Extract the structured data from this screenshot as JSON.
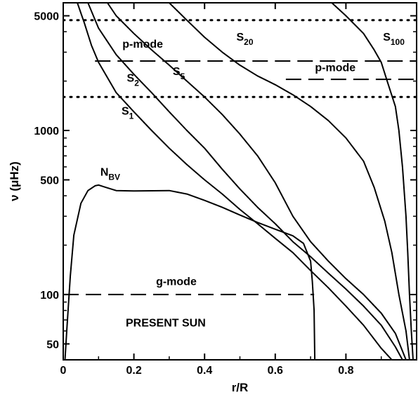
{
  "chart_data": {
    "type": "line",
    "title": "",
    "xlabel": "r/R",
    "ylabel": "ν (μHz)",
    "xlim": [
      0,
      1.0
    ],
    "ylim": [
      40,
      6000
    ],
    "y_scale": "log",
    "x_ticks": [
      0,
      0.2,
      0.4,
      0.6,
      0.8
    ],
    "x_tick_labels": [
      "0",
      "0.2",
      "0.4",
      "0.6",
      "0.8"
    ],
    "y_ticks": [
      50,
      100,
      500,
      1000,
      5000
    ],
    "y_tick_labels": [
      "50",
      "100",
      "500",
      "1000",
      "5000"
    ],
    "curves": [
      {
        "name": "S1",
        "label_main": "S",
        "label_sub": "1",
        "points": [
          [
            0.04,
            6000
          ],
          [
            0.06,
            4500
          ],
          [
            0.08,
            3300
          ],
          [
            0.1,
            2600
          ],
          [
            0.15,
            1700
          ],
          [
            0.2,
            1300
          ],
          [
            0.25,
            1000
          ],
          [
            0.3,
            780
          ],
          [
            0.35,
            620
          ],
          [
            0.4,
            500
          ],
          [
            0.45,
            410
          ],
          [
            0.5,
            330
          ],
          [
            0.55,
            270
          ],
          [
            0.6,
            220
          ],
          [
            0.65,
            180
          ],
          [
            0.7,
            140
          ],
          [
            0.75,
            110
          ],
          [
            0.8,
            85
          ],
          [
            0.85,
            65
          ],
          [
            0.9,
            47
          ],
          [
            0.93,
            40
          ]
        ]
      },
      {
        "name": "S2",
        "label_main": "S",
        "label_sub": "2",
        "points": [
          [
            0.07,
            6000
          ],
          [
            0.1,
            4200
          ],
          [
            0.15,
            2900
          ],
          [
            0.2,
            2200
          ],
          [
            0.25,
            1700
          ],
          [
            0.3,
            1300
          ],
          [
            0.35,
            1000
          ],
          [
            0.4,
            780
          ],
          [
            0.45,
            580
          ],
          [
            0.5,
            440
          ],
          [
            0.55,
            340
          ],
          [
            0.6,
            270
          ],
          [
            0.65,
            210
          ],
          [
            0.7,
            170
          ],
          [
            0.75,
            135
          ],
          [
            0.8,
            108
          ],
          [
            0.85,
            85
          ],
          [
            0.9,
            65
          ],
          [
            0.94,
            48
          ],
          [
            0.96,
            40
          ]
        ]
      },
      {
        "name": "S5",
        "label_main": "S",
        "label_sub": "5",
        "points": [
          [
            0.125,
            6000
          ],
          [
            0.15,
            5000
          ],
          [
            0.2,
            3900
          ],
          [
            0.25,
            3100
          ],
          [
            0.3,
            2500
          ],
          [
            0.35,
            2000
          ],
          [
            0.4,
            1600
          ],
          [
            0.45,
            1250
          ],
          [
            0.5,
            950
          ],
          [
            0.55,
            700
          ],
          [
            0.6,
            480
          ],
          [
            0.65,
            300
          ],
          [
            0.7,
            210
          ],
          [
            0.75,
            160
          ],
          [
            0.8,
            125
          ],
          [
            0.85,
            100
          ],
          [
            0.9,
            77
          ],
          [
            0.94,
            58
          ],
          [
            0.97,
            40
          ]
        ]
      },
      {
        "name": "S20",
        "label_main": "S",
        "label_sub": "20",
        "points": [
          [
            0.3,
            6000
          ],
          [
            0.35,
            4700
          ],
          [
            0.4,
            3700
          ],
          [
            0.45,
            3000
          ],
          [
            0.5,
            2500
          ],
          [
            0.55,
            2150
          ],
          [
            0.6,
            1900
          ],
          [
            0.65,
            1650
          ],
          [
            0.7,
            1400
          ],
          [
            0.75,
            1150
          ],
          [
            0.8,
            900
          ],
          [
            0.85,
            650
          ],
          [
            0.88,
            450
          ],
          [
            0.91,
            280
          ],
          [
            0.93,
            180
          ],
          [
            0.95,
            100
          ],
          [
            0.97,
            60
          ],
          [
            0.98,
            40
          ]
        ]
      },
      {
        "name": "S100",
        "label_main": "S",
        "label_sub": "100",
        "points": [
          [
            0.76,
            6000
          ],
          [
            0.8,
            5000
          ],
          [
            0.85,
            3900
          ],
          [
            0.88,
            3100
          ],
          [
            0.9,
            2600
          ],
          [
            0.92,
            1900
          ],
          [
            0.94,
            1400
          ],
          [
            0.95,
            1000
          ],
          [
            0.96,
            600
          ],
          [
            0.97,
            300
          ],
          [
            0.975,
            180
          ],
          [
            0.98,
            100
          ],
          [
            0.985,
            60
          ],
          [
            0.99,
            40
          ]
        ]
      },
      {
        "name": "NBV",
        "label_main": "N",
        "label_sub": "BV",
        "points": [
          [
            0.005,
            40
          ],
          [
            0.01,
            60
          ],
          [
            0.02,
            130
          ],
          [
            0.03,
            230
          ],
          [
            0.05,
            360
          ],
          [
            0.07,
            430
          ],
          [
            0.09,
            460
          ],
          [
            0.1,
            465
          ],
          [
            0.12,
            450
          ],
          [
            0.15,
            430
          ],
          [
            0.2,
            428
          ],
          [
            0.3,
            430
          ],
          [
            0.35,
            410
          ],
          [
            0.4,
            375
          ],
          [
            0.45,
            340
          ],
          [
            0.5,
            305
          ],
          [
            0.55,
            275
          ],
          [
            0.6,
            250
          ],
          [
            0.65,
            228
          ],
          [
            0.68,
            205
          ],
          [
            0.7,
            160
          ],
          [
            0.705,
            120
          ],
          [
            0.71,
            80
          ],
          [
            0.712,
            40
          ]
        ]
      }
    ],
    "horizontal_lines": [
      {
        "y": 4700,
        "style": "dotted",
        "x_range": [
          0,
          1.0
        ]
      },
      {
        "y": 1600,
        "style": "dotted",
        "x_range": [
          0,
          1.0
        ]
      },
      {
        "y": 2650,
        "style": "dashed",
        "x_range": [
          0.09,
          1.0
        ]
      },
      {
        "y": 2050,
        "style": "dashed",
        "x_range": [
          0.63,
          1.0
        ]
      },
      {
        "y": 100,
        "style": "dashed",
        "x_range": [
          0,
          0.71
        ]
      }
    ],
    "annotations": [
      {
        "text": "p-mode",
        "x": 0.225,
        "y": 3200
      },
      {
        "text": "p-mode",
        "x": 0.77,
        "y": 2300
      },
      {
        "text": "g-mode",
        "x": 0.32,
        "y": 114
      },
      {
        "text": "PRESENT SUN",
        "x": 0.29,
        "y": 64
      }
    ],
    "curve_labels": [
      {
        "ref": "S1",
        "x": 0.165,
        "y": 1250
      },
      {
        "ref": "S2",
        "x": 0.18,
        "y": 1980
      },
      {
        "ref": "S5",
        "x": 0.31,
        "y": 2180
      },
      {
        "ref": "S20",
        "x": 0.49,
        "y": 3520
      },
      {
        "ref": "S100",
        "x": 0.905,
        "y": 3520
      },
      {
        "ref": "NBV",
        "x": 0.105,
        "y": 530
      }
    ],
    "grid": false,
    "legend": "none"
  }
}
